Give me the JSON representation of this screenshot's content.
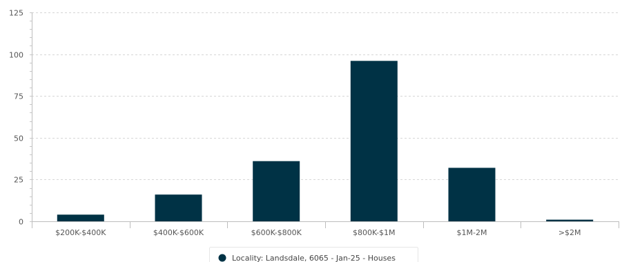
{
  "chart_data": {
    "type": "bar",
    "categories": [
      "$200K-$400K",
      "$400K-$600K",
      "$600K-$800K",
      "$800K-$1M",
      "$1M-2M",
      ">$2M"
    ],
    "series": [
      {
        "name": "Locality: Landsdale, 6065 - Jan-25 - Houses",
        "values": [
          4,
          16,
          36,
          96,
          32,
          1
        ],
        "color": "#003245"
      }
    ],
    "ylim": [
      0,
      125
    ],
    "yticks": [
      0,
      25,
      50,
      75,
      100,
      125
    ],
    "grid": true,
    "legend_position": "bottom-center"
  }
}
